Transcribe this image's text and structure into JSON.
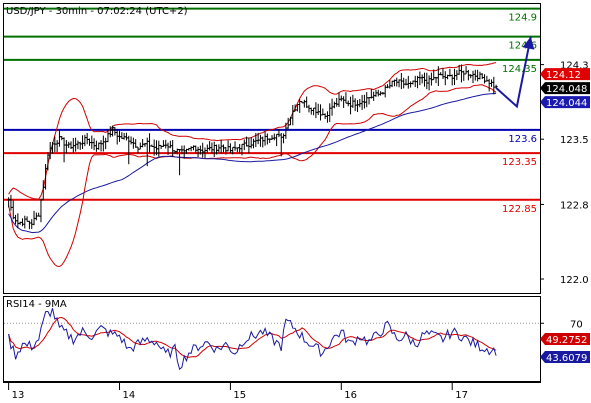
{
  "header": {
    "title": "USD/JPY - 30min - 07:02:24 (UTC+2)"
  },
  "colors": {
    "resistance": "#007000",
    "pivot": "#0000b0",
    "support": "#e00000",
    "price_bar": "#000000",
    "bollinger": "#d00000",
    "moving_average": "#1a1aa0",
    "rsi_line": "#1a1aa0",
    "rsi_ma": "#d00000",
    "arrow": "#1a1aa0",
    "last_price_tag": "#000000",
    "bid_tag": "#1a1ab0",
    "ask_tag": "#e00000"
  },
  "chart_data": [
    {
      "type": "line",
      "name": "price",
      "title": "USD/JPY - 30min - 07:02:24 (UTC+2)",
      "xlabel": "",
      "ylabel": "",
      "ylim": [
        121.85,
        124.95
      ],
      "yticks": [
        122.0,
        122.8,
        123.5,
        124.3
      ],
      "ytick_labels": [
        "122.0",
        "122.8",
        "123.5",
        "124.3"
      ],
      "x_day_labels": [
        {
          "label": "13",
          "x": 0
        },
        {
          "label": "14",
          "x": 48
        },
        {
          "label": "15",
          "x": 96
        },
        {
          "label": "16",
          "x": 144
        },
        {
          "label": "17",
          "x": 192
        }
      ],
      "xlim": [
        -2,
        230
      ],
      "grid": false,
      "levels": [
        {
          "value": 124.9,
          "label": "124.9",
          "kind": "resistance"
        },
        {
          "value": 124.6,
          "label": "124.6",
          "kind": "resistance"
        },
        {
          "value": 124.35,
          "label": "124.35",
          "kind": "resistance"
        },
        {
          "value": 123.6,
          "label": "123.6",
          "kind": "pivot"
        },
        {
          "value": 123.35,
          "label": "123.35",
          "kind": "support"
        },
        {
          "value": 122.85,
          "label": "122.85",
          "kind": "support"
        }
      ],
      "price_tags": [
        {
          "value": 124.12,
          "label": "124.12",
          "kind": "ask"
        },
        {
          "value": 124.048,
          "label": "124.048",
          "kind": "last"
        },
        {
          "value": 124.044,
          "label": "124.044",
          "kind": "bid"
        }
      ],
      "price_control_points": [
        [
          0,
          122.85
        ],
        [
          2,
          122.68
        ],
        [
          4,
          122.6
        ],
        [
          7,
          122.62
        ],
        [
          10,
          122.6
        ],
        [
          13,
          122.7
        ],
        [
          15,
          123.0
        ],
        [
          17,
          123.35
        ],
        [
          19,
          123.45
        ],
        [
          22,
          123.5
        ],
        [
          26,
          123.42
        ],
        [
          30,
          123.45
        ],
        [
          34,
          123.5
        ],
        [
          38,
          123.42
        ],
        [
          42,
          123.5
        ],
        [
          45,
          123.6
        ],
        [
          48,
          123.52
        ],
        [
          52,
          123.5
        ],
        [
          56,
          123.42
        ],
        [
          60,
          123.45
        ],
        [
          64,
          123.4
        ],
        [
          68,
          123.45
        ],
        [
          72,
          123.38
        ],
        [
          76,
          123.35
        ],
        [
          80,
          123.42
        ],
        [
          84,
          123.38
        ],
        [
          88,
          123.4
        ],
        [
          92,
          123.42
        ],
        [
          96,
          123.38
        ],
        [
          100,
          123.42
        ],
        [
          104,
          123.45
        ],
        [
          108,
          123.48
        ],
        [
          112,
          123.52
        ],
        [
          116,
          123.55
        ],
        [
          118,
          123.5
        ],
        [
          120,
          123.62
        ],
        [
          123,
          123.8
        ],
        [
          126,
          123.92
        ],
        [
          130,
          123.85
        ],
        [
          134,
          123.8
        ],
        [
          137,
          123.75
        ],
        [
          140,
          123.85
        ],
        [
          144,
          123.92
        ],
        [
          148,
          123.88
        ],
        [
          152,
          123.9
        ],
        [
          156,
          123.95
        ],
        [
          160,
          123.98
        ],
        [
          164,
          124.05
        ],
        [
          167,
          124.12
        ],
        [
          170,
          124.1
        ],
        [
          174,
          124.08
        ],
        [
          178,
          124.15
        ],
        [
          182,
          124.12
        ],
        [
          186,
          124.18
        ],
        [
          190,
          124.16
        ],
        [
          194,
          124.2
        ],
        [
          197,
          124.22
        ],
        [
          200,
          124.2
        ],
        [
          203,
          124.18
        ],
        [
          206,
          124.15
        ],
        [
          209,
          124.1
        ],
        [
          211,
          124.05
        ]
      ],
      "bar_range": 0.09,
      "spikes": [
        [
          24,
          0.12
        ],
        [
          52,
          0.2
        ],
        [
          60,
          0.18
        ],
        [
          74,
          0.25
        ],
        [
          118,
          0.12
        ],
        [
          196,
          0.1
        ]
      ],
      "bollinger_period": 20,
      "bollinger_k": 2.0,
      "moving_average_period": 50,
      "forecast_path": [
        [
          211,
          124.05
        ],
        [
          220,
          123.85
        ],
        [
          226,
          124.6
        ]
      ]
    },
    {
      "type": "line",
      "name": "RSI14 - 9MA",
      "title": "RSI14 - 9MA",
      "ylim": [
        15,
        95
      ],
      "yticks": [
        70
      ],
      "ytick_labels": [
        "70"
      ],
      "values_tags": [
        {
          "value": 49.2752,
          "label": "49.2752",
          "kind": "rsi_ma"
        },
        {
          "value": 43.6079,
          "label": "43.6079",
          "kind": "rsi"
        }
      ],
      "rsi_control_points": [
        [
          0,
          55
        ],
        [
          3,
          40
        ],
        [
          6,
          50
        ],
        [
          10,
          48
        ],
        [
          13,
          55
        ],
        [
          16,
          78
        ],
        [
          19,
          82
        ],
        [
          22,
          65
        ],
        [
          25,
          60
        ],
        [
          28,
          55
        ],
        [
          32,
          62
        ],
        [
          36,
          58
        ],
        [
          40,
          65
        ],
        [
          44,
          60
        ],
        [
          48,
          58
        ],
        [
          52,
          45
        ],
        [
          56,
          50
        ],
        [
          60,
          55
        ],
        [
          64,
          52
        ],
        [
          68,
          40
        ],
        [
          72,
          45
        ],
        [
          74,
          30
        ],
        [
          78,
          42
        ],
        [
          82,
          48
        ],
        [
          86,
          52
        ],
        [
          90,
          45
        ],
        [
          94,
          50
        ],
        [
          98,
          42
        ],
        [
          102,
          55
        ],
        [
          106,
          58
        ],
        [
          110,
          62
        ],
        [
          114,
          55
        ],
        [
          118,
          48
        ],
        [
          120,
          72
        ],
        [
          124,
          65
        ],
        [
          128,
          55
        ],
        [
          132,
          48
        ],
        [
          136,
          42
        ],
        [
          140,
          55
        ],
        [
          144,
          62
        ],
        [
          148,
          50
        ],
        [
          152,
          58
        ],
        [
          156,
          52
        ],
        [
          160,
          60
        ],
        [
          164,
          68
        ],
        [
          168,
          55
        ],
        [
          172,
          58
        ],
        [
          176,
          50
        ],
        [
          180,
          60
        ],
        [
          184,
          58
        ],
        [
          188,
          55
        ],
        [
          192,
          62
        ],
        [
          196,
          58
        ],
        [
          200,
          52
        ],
        [
          204,
          48
        ],
        [
          208,
          45
        ],
        [
          211,
          44
        ]
      ]
    }
  ]
}
